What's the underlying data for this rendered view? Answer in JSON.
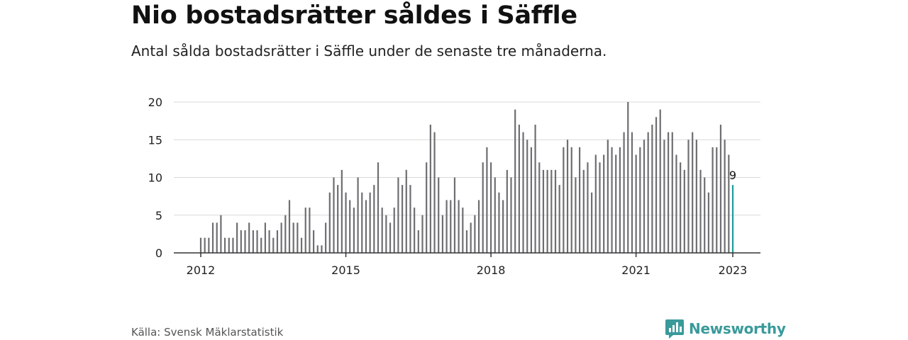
{
  "title": "Nio bostadsrätter såldes i Säffle",
  "subtitle": "Antal sålda bostadsrätter i Säffle under de senaste tre månaderna.",
  "source": "Källa: Svensk Mäklarstatistik",
  "brand": {
    "name": "Newsworthy",
    "icon": "newsworthy-logo-icon",
    "color": "#3a9a9a"
  },
  "chart_data": {
    "type": "bar",
    "title": "",
    "xlabel": "",
    "ylabel": "",
    "x_start": "2012-01",
    "x_end": "2023-01",
    "xticks": [
      "2012",
      "2015",
      "2018",
      "2021",
      "2023"
    ],
    "yticks": [
      0,
      5,
      10,
      15,
      20
    ],
    "ylim": [
      0,
      20
    ],
    "grid": true,
    "bar_color": "#6e6e72",
    "highlight_color": "#1a9e97",
    "highlight_label": "9",
    "values": [
      2,
      2,
      2,
      4,
      4,
      5,
      2,
      2,
      2,
      4,
      3,
      3,
      4,
      3,
      3,
      2,
      4,
      3,
      2,
      3,
      4,
      5,
      7,
      4,
      4,
      2,
      6,
      6,
      3,
      1,
      1,
      4,
      8,
      10,
      9,
      11,
      8,
      7,
      6,
      10,
      8,
      7,
      8,
      9,
      12,
      6,
      5,
      4,
      6,
      10,
      9,
      11,
      9,
      6,
      3,
      5,
      12,
      17,
      16,
      10,
      5,
      7,
      7,
      10,
      7,
      6,
      3,
      4,
      5,
      7,
      12,
      14,
      12,
      10,
      8,
      7,
      11,
      10,
      19,
      17,
      16,
      15,
      14,
      17,
      12,
      11,
      11,
      11,
      11,
      9,
      14,
      15,
      14,
      10,
      14,
      11,
      12,
      8,
      13,
      12,
      13,
      15,
      14,
      13,
      14,
      16,
      20,
      16,
      13,
      14,
      15,
      16,
      17,
      18,
      19,
      15,
      16,
      16,
      13,
      12,
      11,
      15,
      16,
      15,
      11,
      10,
      8,
      14,
      14,
      17,
      15,
      13,
      9
    ]
  }
}
